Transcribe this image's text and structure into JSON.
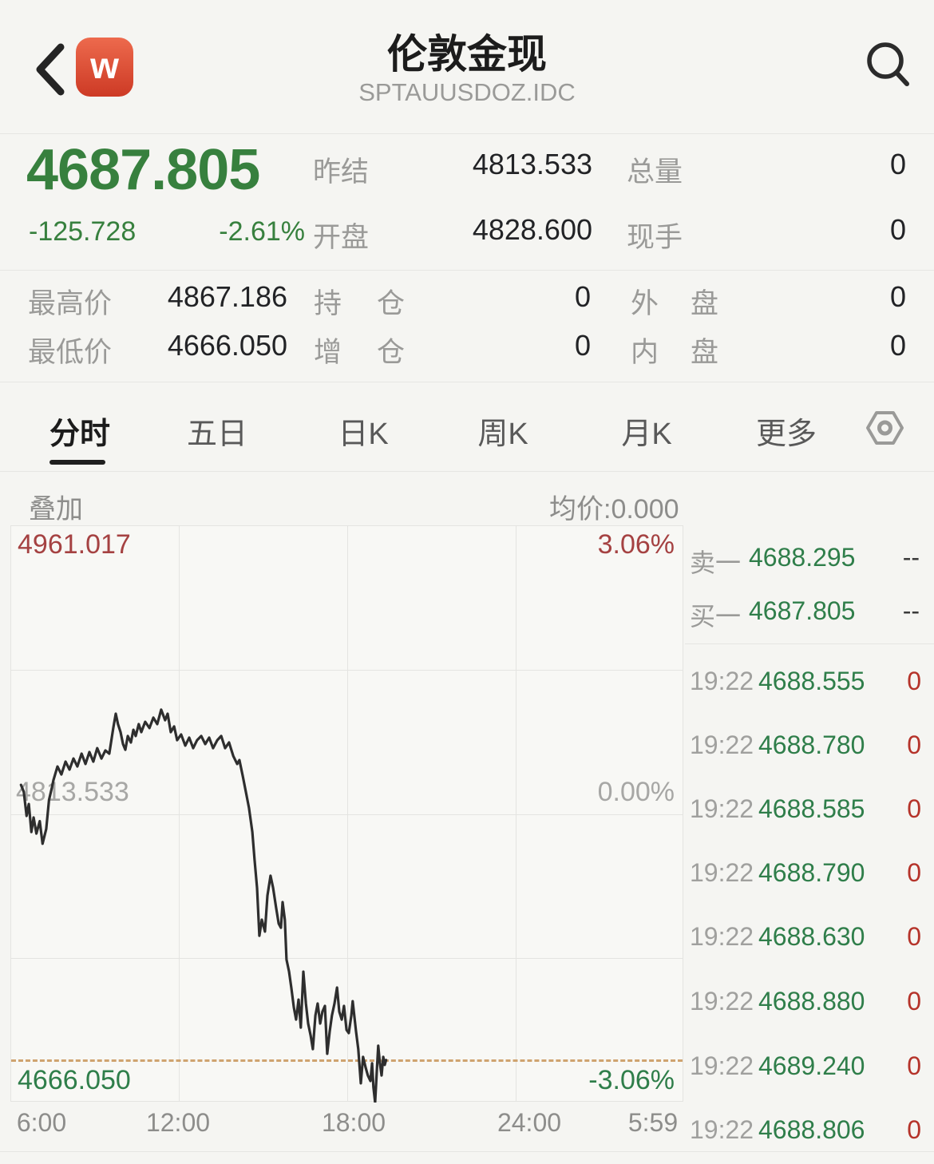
{
  "colors": {
    "green": "#37803e",
    "green2": "#2f7e4a",
    "red": "#a54242",
    "red-bright": "#b5332a",
    "tan": "#cfa36f",
    "line": "#2e2e2e",
    "pagebg": "#f5f5f2",
    "chartbg": "#f8f8f5"
  },
  "header": {
    "title": "伦敦金现",
    "subtitle": "SPTAUUSDOZ.IDC",
    "logo_letter": "w"
  },
  "quote": {
    "last": "4687.805",
    "change": "-125.728",
    "change_pct": "-2.61%",
    "prev_close": {
      "label": "昨结",
      "value": "4813.533"
    },
    "open": {
      "label": "开盘",
      "value": "4828.600"
    },
    "total_volume": {
      "label": "总量",
      "value": "0"
    },
    "current_volume": {
      "label": "现手",
      "value": "0"
    },
    "high": {
      "label": "最高价",
      "value": "4867.186"
    },
    "low": {
      "label": "最低价",
      "value": "4666.050"
    },
    "open_interest": {
      "label": "持仓",
      "value": "0"
    },
    "oi_change": {
      "label": "增仓",
      "value": "0"
    },
    "outer_volume": {
      "label": "外盘",
      "value": "0"
    },
    "inner_volume": {
      "label": "内盘",
      "value": "0"
    }
  },
  "tabs": {
    "items": [
      "分时",
      "五日",
      "日K",
      "周K",
      "月K",
      "更多"
    ],
    "active": "分时"
  },
  "toolbar": {
    "overlay_label": "叠加",
    "avg_price_label": "均价:0.000"
  },
  "chart_data": {
    "type": "line",
    "x_ticks": [
      "6:00",
      "12:00",
      "18:00",
      "24:00",
      "5:59"
    ],
    "xlim_hours": [
      0,
      24
    ],
    "ylim": [
      4666.05,
      4961.017
    ],
    "prev_close": 4813.533,
    "current_price": 4687.805,
    "y_labels_left": [
      "4961.017",
      "4813.533",
      "4666.050"
    ],
    "y_labels_right": [
      "3.06%",
      "0.00%",
      "-3.06%"
    ],
    "grid": true,
    "series": [
      {
        "name": "价格",
        "points": [
          [
            0.35,
            4828.6
          ],
          [
            0.45,
            4825.0
          ],
          [
            0.55,
            4812.7
          ],
          [
            0.63,
            4818.8
          ],
          [
            0.72,
            4804.5
          ],
          [
            0.8,
            4811.9
          ],
          [
            0.9,
            4803.7
          ],
          [
            1.02,
            4810.0
          ],
          [
            1.12,
            4798.5
          ],
          [
            1.25,
            4806.0
          ],
          [
            1.35,
            4820.9
          ],
          [
            1.45,
            4827.0
          ],
          [
            1.51,
            4831.1
          ],
          [
            1.65,
            4838.0
          ],
          [
            1.79,
            4833.9
          ],
          [
            1.94,
            4840.5
          ],
          [
            2.08,
            4836.4
          ],
          [
            2.22,
            4842.1
          ],
          [
            2.36,
            4838.0
          ],
          [
            2.51,
            4844.6
          ],
          [
            2.65,
            4839.3
          ],
          [
            2.79,
            4845.4
          ],
          [
            2.93,
            4840.5
          ],
          [
            3.07,
            4847.4
          ],
          [
            3.22,
            4842.1
          ],
          [
            3.36,
            4846.2
          ],
          [
            3.5,
            4844.6
          ],
          [
            3.64,
            4857.7
          ],
          [
            3.73,
            4865.0
          ],
          [
            3.81,
            4859.7
          ],
          [
            3.9,
            4855.6
          ],
          [
            3.99,
            4849.5
          ],
          [
            4.07,
            4846.6
          ],
          [
            4.16,
            4853.6
          ],
          [
            4.27,
            4850.3
          ],
          [
            4.36,
            4856.8
          ],
          [
            4.44,
            4853.6
          ],
          [
            4.55,
            4859.7
          ],
          [
            4.64,
            4855.6
          ],
          [
            4.78,
            4860.9
          ],
          [
            4.93,
            4857.7
          ],
          [
            5.07,
            4863.0
          ],
          [
            5.21,
            4859.7
          ],
          [
            5.35,
            4867.1
          ],
          [
            5.49,
            4861.7
          ],
          [
            5.58,
            4865.0
          ],
          [
            5.69,
            4855.6
          ],
          [
            5.81,
            4858.5
          ],
          [
            5.92,
            4851.5
          ],
          [
            6.06,
            4854.4
          ],
          [
            6.21,
            4848.7
          ],
          [
            6.35,
            4852.8
          ],
          [
            6.49,
            4847.4
          ],
          [
            6.63,
            4851.5
          ],
          [
            6.78,
            4853.6
          ],
          [
            6.92,
            4849.5
          ],
          [
            7.06,
            4852.8
          ],
          [
            7.2,
            4847.4
          ],
          [
            7.35,
            4851.5
          ],
          [
            7.49,
            4853.6
          ],
          [
            7.63,
            4847.4
          ],
          [
            7.77,
            4850.3
          ],
          [
            7.92,
            4843.4
          ],
          [
            8.06,
            4839.3
          ],
          [
            8.14,
            4841.3
          ],
          [
            8.26,
            4833.1
          ],
          [
            8.37,
            4825.0
          ],
          [
            8.48,
            4816.8
          ],
          [
            8.6,
            4804.5
          ],
          [
            8.68,
            4790.2
          ],
          [
            8.77,
            4775.9
          ],
          [
            8.85,
            4751.4
          ],
          [
            8.94,
            4759.6
          ],
          [
            9.05,
            4753.5
          ],
          [
            9.14,
            4771.9
          ],
          [
            9.25,
            4782.1
          ],
          [
            9.34,
            4775.9
          ],
          [
            9.45,
            4765.7
          ],
          [
            9.54,
            4757.6
          ],
          [
            9.62,
            4755.5
          ],
          [
            9.68,
            4768.6
          ],
          [
            9.76,
            4759.6
          ],
          [
            9.82,
            4739.2
          ],
          [
            9.91,
            4733.0
          ],
          [
            9.99,
            4724.9
          ],
          [
            10.08,
            4714.7
          ],
          [
            10.16,
            4708.5
          ],
          [
            10.25,
            4718.7
          ],
          [
            10.33,
            4704.4
          ],
          [
            10.42,
            4733.0
          ],
          [
            10.51,
            4716.7
          ],
          [
            10.59,
            4706.5
          ],
          [
            10.68,
            4700.4
          ],
          [
            10.76,
            4693.4
          ],
          [
            10.85,
            4710.6
          ],
          [
            10.93,
            4716.7
          ],
          [
            11.02,
            4706.5
          ],
          [
            11.1,
            4712.6
          ],
          [
            11.19,
            4715.5
          ],
          [
            11.27,
            4691.0
          ],
          [
            11.36,
            4702.4
          ],
          [
            11.44,
            4710.6
          ],
          [
            11.53,
            4716.7
          ],
          [
            11.62,
            4724.9
          ],
          [
            11.7,
            4712.6
          ],
          [
            11.79,
            4708.5
          ],
          [
            11.87,
            4715.5
          ],
          [
            11.96,
            4703.2
          ],
          [
            12.04,
            4701.6
          ],
          [
            12.13,
            4710.6
          ],
          [
            12.18,
            4717.9
          ],
          [
            12.3,
            4702.4
          ],
          [
            12.38,
            4693.4
          ],
          [
            12.47,
            4675.9
          ],
          [
            12.55,
            4689.4
          ],
          [
            12.64,
            4684.0
          ],
          [
            12.72,
            4679.9
          ],
          [
            12.81,
            4677.1
          ],
          [
            12.87,
            4686.1
          ],
          [
            12.92,
            4673.8
          ],
          [
            12.98,
            4666.1
          ],
          [
            13.04,
            4682.0
          ],
          [
            13.09,
            4695.1
          ],
          [
            13.15,
            4686.1
          ],
          [
            13.21,
            4679.9
          ],
          [
            13.27,
            4689.4
          ],
          [
            13.32,
            4685.3
          ],
          [
            13.37,
            4687.8
          ]
        ]
      }
    ]
  },
  "order_book": {
    "sell1": {
      "label": "卖一",
      "price": "4688.295",
      "volume": "--"
    },
    "buy1": {
      "label": "买一",
      "price": "4687.805",
      "volume": "--"
    }
  },
  "trades": [
    {
      "time": "19:22",
      "price": "4688.555",
      "vol": "0"
    },
    {
      "time": "19:22",
      "price": "4688.780",
      "vol": "0"
    },
    {
      "time": "19:22",
      "price": "4688.585",
      "vol": "0"
    },
    {
      "time": "19:22",
      "price": "4688.790",
      "vol": "0"
    },
    {
      "time": "19:22",
      "price": "4688.630",
      "vol": "0"
    },
    {
      "time": "19:22",
      "price": "4688.880",
      "vol": "0"
    },
    {
      "time": "19:22",
      "price": "4689.240",
      "vol": "0"
    },
    {
      "time": "19:22",
      "price": "4688.806",
      "vol": "0"
    }
  ]
}
